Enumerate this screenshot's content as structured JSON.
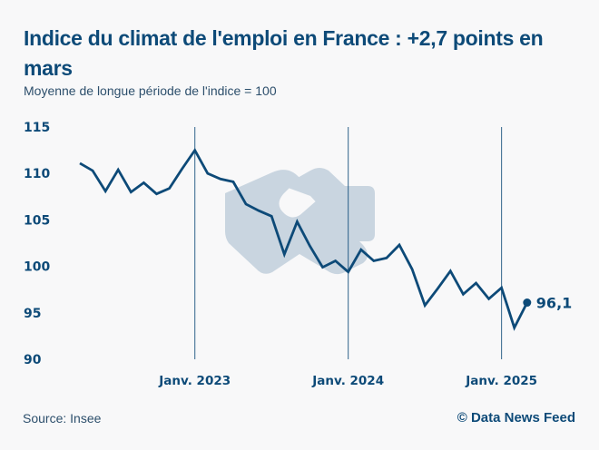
{
  "header": {
    "title": "Indice du climat de l'emploi en France : +2,7 points en mars",
    "subtitle": "Moyenne de longue période de l'indice = 100"
  },
  "footer": {
    "source": "Source: Insee",
    "credit": "© Data News Feed"
  },
  "colors": {
    "line": "#0d4a78",
    "background": "#f8f8f9",
    "watermark": "#c9d5e0"
  },
  "watermark_icon": "handshake-icon",
  "chart_data": {
    "type": "line",
    "title": "Indice du climat de l'emploi en France : +2,7 points en mars",
    "subtitle": "Moyenne de longue période de l'indice = 100",
    "xlabel": "",
    "ylabel": "",
    "ylim": [
      90,
      115
    ],
    "yticks": [
      "115",
      "110",
      "105",
      "100",
      "95",
      "90"
    ],
    "ytick_values": [
      115,
      110,
      105,
      100,
      95,
      90
    ],
    "xticks": [
      {
        "label": "Janv. 2023",
        "month_index": 9
      },
      {
        "label": "Janv. 2024",
        "month_index": 21
      },
      {
        "label": "Janv. 2025",
        "month_index": 33
      }
    ],
    "vertical_markers_at_xticks": true,
    "grid": false,
    "legend": "none",
    "end_label": "96,1",
    "x": [
      "2022-04",
      "2022-05",
      "2022-06",
      "2022-07",
      "2022-08",
      "2022-09",
      "2022-10",
      "2022-11",
      "2022-12",
      "2023-01",
      "2023-02",
      "2023-03",
      "2023-04",
      "2023-05",
      "2023-06",
      "2023-07",
      "2023-08",
      "2023-09",
      "2023-10",
      "2023-11",
      "2023-12",
      "2024-01",
      "2024-02",
      "2024-03",
      "2024-04",
      "2024-05",
      "2024-06",
      "2024-07",
      "2024-08",
      "2024-09",
      "2024-10",
      "2024-11",
      "2024-12",
      "2025-01",
      "2025-02",
      "2025-03"
    ],
    "series": [
      {
        "name": "Indice du climat de l'emploi",
        "values": [
          111.1,
          110.3,
          108.1,
          110.4,
          108.0,
          109.0,
          107.8,
          108.4,
          110.5,
          112.5,
          110.0,
          109.4,
          109.1,
          106.7,
          106.0,
          105.4,
          101.3,
          104.8,
          102.2,
          99.9,
          100.6,
          99.4,
          101.8,
          100.6,
          100.9,
          102.3,
          99.7,
          95.8,
          97.6,
          99.5,
          97.0,
          98.2,
          96.5,
          97.7,
          93.4,
          96.1
        ]
      }
    ]
  }
}
